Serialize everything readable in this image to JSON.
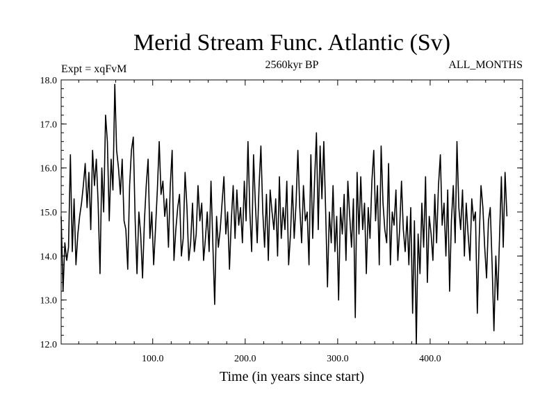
{
  "chart_data": {
    "type": "line",
    "title": "Merid Stream Func. Atlantic (Sv)",
    "subtitle_left": "Expt = xqFvM",
    "subtitle_center": "2560kyr BP",
    "subtitle_right": "ALL_MONTHS",
    "xlabel": "Time (in years since start)",
    "ylabel": "",
    "xlim": [
      1,
      500
    ],
    "ylim": [
      12.0,
      18.0
    ],
    "xticks": [
      100,
      200,
      300,
      400
    ],
    "xtick_labels": [
      "100.0",
      "200.0",
      "300.0",
      "400.0"
    ],
    "yticks": [
      12,
      13,
      14,
      15,
      16,
      17,
      18
    ],
    "ytick_labels": [
      "12.0",
      "13.0",
      "14.0",
      "15.0",
      "16.0",
      "17.0",
      "18.0"
    ],
    "grid": false,
    "series": [
      {
        "name": "Merid Stream Func. Atlantic",
        "color": "#000000",
        "x_start": 1,
        "x_step": 2,
        "values": [
          14.9,
          13.2,
          14.3,
          13.9,
          14.2,
          16.3,
          14.1,
          15.3,
          13.8,
          14.5,
          14.9,
          15.2,
          15.6,
          16.1,
          15.1,
          15.9,
          14.6,
          16.4,
          15.6,
          16.2,
          15.2,
          13.6,
          16.0,
          15.0,
          17.2,
          16.6,
          14.8,
          16.2,
          15.5,
          17.9,
          16.4,
          16.0,
          15.4,
          16.2,
          14.8,
          14.6,
          13.7,
          15.6,
          16.4,
          16.7,
          14.8,
          13.6,
          15.0,
          14.5,
          13.5,
          14.8,
          15.6,
          16.2,
          14.4,
          15.0,
          13.8,
          14.6,
          15.5,
          16.6,
          15.4,
          15.7,
          14.9,
          15.3,
          14.2,
          15.6,
          16.4,
          13.9,
          14.6,
          15.1,
          15.4,
          14.0,
          14.4,
          15.9,
          15.1,
          13.9,
          14.3,
          15.2,
          14.1,
          14.5,
          15.6,
          14.8,
          15.2,
          13.9,
          14.4,
          15.0,
          14.1,
          15.7,
          14.3,
          12.9,
          14.9,
          14.2,
          14.6,
          15.2,
          15.8,
          14.5,
          15.0,
          13.7,
          14.8,
          15.6,
          14.4,
          15.5,
          14.7,
          15.1,
          14.3,
          15.7,
          14.8,
          16.6,
          15.0,
          14.1,
          16.3,
          15.2,
          14.3,
          15.6,
          16.5,
          15.0,
          14.2,
          15.4,
          13.9,
          15.5,
          15.0,
          14.6,
          15.3,
          14.0,
          15.8,
          14.4,
          15.1,
          14.6,
          15.7,
          13.8,
          14.5,
          15.6,
          14.4,
          15.2,
          16.4,
          15.1,
          14.3,
          15.6,
          14.8,
          15.0,
          13.8,
          16.3,
          14.4,
          15.7,
          16.8,
          14.6,
          16.5,
          15.3,
          16.6,
          15.0,
          13.3,
          15.0,
          14.3,
          15.6,
          14.1,
          14.9,
          13.0,
          15.1,
          14.5,
          15.4,
          13.9,
          15.7,
          14.9,
          14.2,
          15.3,
          12.6,
          15.9,
          14.5,
          15.8,
          14.6,
          15.2,
          13.6,
          15.1,
          14.4,
          15.7,
          16.4,
          14.8,
          15.6,
          13.8,
          16.5,
          15.2,
          14.6,
          14.3,
          16.1,
          13.8,
          15.0,
          14.7,
          15.5,
          13.9,
          14.6,
          15.7,
          14.6,
          14.1,
          14.9,
          13.8,
          15.1,
          12.7,
          14.8,
          12.0,
          14.5,
          13.6,
          15.2,
          14.2,
          15.8,
          13.4,
          14.9,
          14.5,
          13.9,
          15.4,
          14.3,
          15.6,
          16.3,
          14.7,
          15.2,
          14.0,
          15.5,
          13.2,
          14.8,
          15.6,
          14.3,
          16.6,
          15.1,
          14.6,
          15.5,
          14.0,
          15.2,
          14.5,
          13.9,
          15.3,
          14.8,
          15.0,
          12.7,
          14.4,
          15.6,
          15.1,
          14.2,
          13.5,
          14.8,
          15.1,
          13.8,
          12.3,
          14.0,
          13.0,
          14.4,
          15.8,
          14.2,
          15.9,
          14.9
        ]
      }
    ]
  }
}
